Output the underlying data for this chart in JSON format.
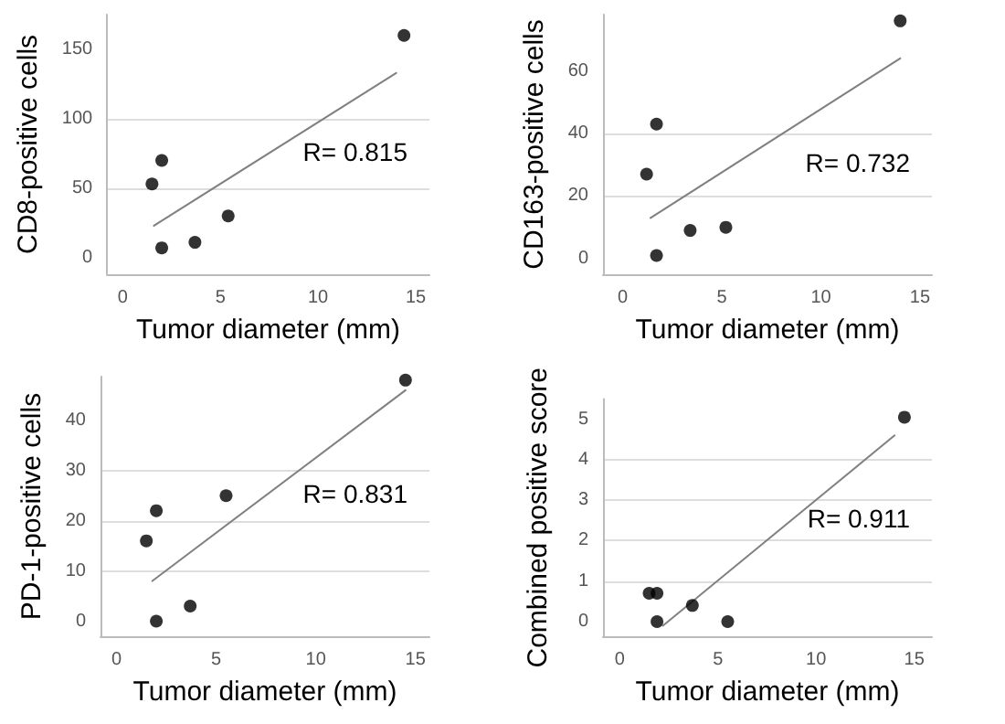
{
  "chart_data": [
    {
      "type": "scatter",
      "xlabel": "Tumor diameter (mm)",
      "ylabel": "CD8-positive cells",
      "annotations": [
        "R= 0.815"
      ],
      "xlim": [
        -0.8,
        15.7
      ],
      "xticks": [
        0,
        5,
        10,
        15
      ],
      "ylim": [
        -12,
        175
      ],
      "yticks": [
        0,
        50,
        100,
        150
      ],
      "grid": "y",
      "series": [
        {
          "type": "scatter",
          "marker": "circle",
          "color": "#000000",
          "x": [
            1.5,
            2,
            2,
            3.7,
            5.4,
            14.4
          ],
          "values": [
            53,
            70,
            7,
            11,
            30,
            160
          ]
        },
        {
          "type": "line",
          "marker": "none",
          "color": "#808080",
          "x": [
            1.6,
            14
          ],
          "values": [
            23,
            133
          ]
        }
      ]
    },
    {
      "type": "scatter",
      "xlabel": "Tumor diameter (mm)",
      "ylabel": "CD163-positive cells",
      "annotations": [
        "R= 0.732"
      ],
      "xlim": [
        -1,
        15.6
      ],
      "xticks": [
        0,
        5,
        10,
        15
      ],
      "ylim": [
        -5,
        78
      ],
      "yticks": [
        0,
        20,
        40,
        60
      ],
      "grid": "y",
      "series": [
        {
          "type": "scatter",
          "marker": "circle",
          "color": "#000000",
          "x": [
            1.2,
            1.7,
            1.7,
            3.4,
            5.2,
            14
          ],
          "values": [
            27,
            43,
            1,
            9,
            10,
            76
          ]
        },
        {
          "type": "line",
          "marker": "none",
          "color": "#808080",
          "x": [
            1.4,
            14
          ],
          "values": [
            13,
            64
          ]
        }
      ]
    },
    {
      "type": "scatter",
      "xlabel": "Tumor diameter (mm)",
      "ylabel": "PD-1-positive cells",
      "annotations": [
        "R= 0.831"
      ],
      "xlim": [
        -0.8,
        15.7
      ],
      "xticks": [
        0,
        5,
        10,
        15
      ],
      "ylim": [
        -3,
        48.7
      ],
      "yticks": [
        0,
        10,
        20,
        30,
        40
      ],
      "grid": "y",
      "series": [
        {
          "type": "scatter",
          "marker": "circle",
          "color": "#000000",
          "x": [
            1.5,
            2,
            2,
            3.7,
            5.5,
            14.5
          ],
          "values": [
            16,
            22,
            0,
            3,
            25,
            48
          ]
        },
        {
          "type": "line",
          "marker": "none",
          "color": "#808080",
          "x": [
            1.8,
            14.5
          ],
          "values": [
            8,
            46
          ]
        }
      ]
    },
    {
      "type": "scatter",
      "xlabel": "Tumor diameter (mm)",
      "ylabel": "Combined positive score",
      "annotations": [
        "R= 0.911"
      ],
      "xlim": [
        -0.85,
        15.9
      ],
      "xticks": [
        0,
        5,
        10,
        15
      ],
      "ylim": [
        -0.36,
        5.5
      ],
      "yticks": [
        0,
        1,
        2,
        3,
        4,
        5
      ],
      "grid": "y",
      "series": [
        {
          "type": "scatter",
          "marker": "circle",
          "color": "#000000",
          "x": [
            1.5,
            1.9,
            1.9,
            3.7,
            5.5,
            14.5
          ],
          "values": [
            0.7,
            0.7,
            0,
            0.4,
            0,
            5.05
          ]
        },
        {
          "type": "line",
          "marker": "none",
          "color": "#808080",
          "x": [
            2.2,
            14
          ],
          "values": [
            -0.1,
            4.6
          ]
        }
      ]
    }
  ]
}
